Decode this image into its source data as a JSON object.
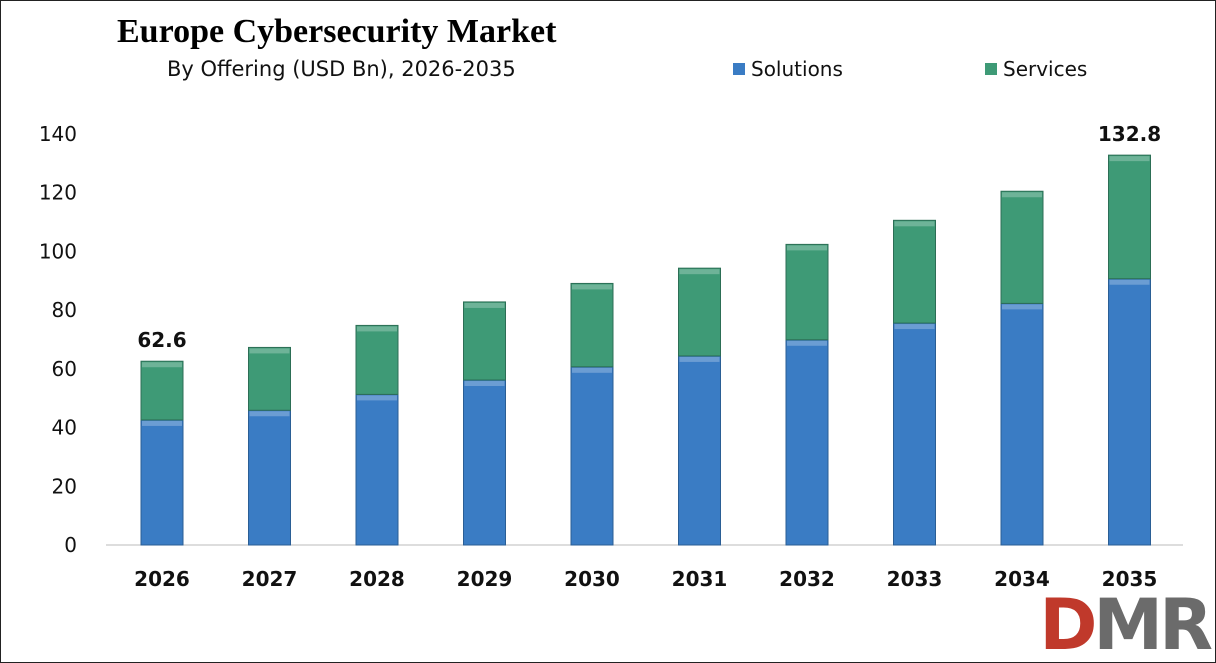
{
  "chart_data": {
    "type": "bar",
    "stacked": true,
    "title": "Europe Cybersecurity Market",
    "subtitle": "By Offering (USD Bn), 2026-2035",
    "categories": [
      "2026",
      "2027",
      "2028",
      "2029",
      "2030",
      "2031",
      "2032",
      "2033",
      "2034",
      "2035"
    ],
    "series": [
      {
        "name": "Solutions",
        "color": "#3a7cc4",
        "values": [
          42.6,
          45.9,
          51.3,
          56.2,
          60.7,
          64.4,
          69.9,
          75.6,
          82.3,
          90.7
        ]
      },
      {
        "name": "Services",
        "color": "#3e9a76",
        "values": [
          20.0,
          21.4,
          23.5,
          26.6,
          28.4,
          29.9,
          32.5,
          35.0,
          38.2,
          42.1
        ]
      }
    ],
    "data_labels": [
      {
        "category": "2026",
        "text": "62.6"
      },
      {
        "category": "2035",
        "text": "132.8"
      }
    ],
    "yticks": [
      "0",
      "20",
      "40",
      "60",
      "80",
      "100",
      "120",
      "140"
    ],
    "ylim": [
      0,
      140
    ],
    "grid": false,
    "legend": "top-right"
  },
  "logo": {
    "text": "DMR",
    "colors": [
      "#c0392b",
      "#555555"
    ]
  }
}
